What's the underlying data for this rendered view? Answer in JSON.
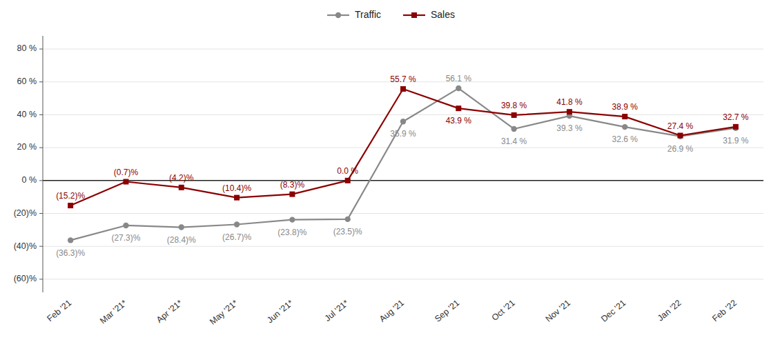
{
  "chart_data": {
    "type": "line",
    "categories": [
      "Feb '21",
      "Mar '21*",
      "Apr '21*",
      "May '21*",
      "Jun '21*",
      "Jul '21*",
      "Aug '21",
      "Sep '21",
      "Oct '21",
      "Nov '21",
      "Dec '21",
      "Jan '22",
      "Feb '22"
    ],
    "series": [
      {
        "name": "Traffic",
        "color": "#888888",
        "marker": "circle",
        "line_style": "solid",
        "values": [
          -36.3,
          -27.3,
          -28.4,
          -26.7,
          -23.8,
          -23.5,
          35.9,
          56.1,
          31.4,
          39.3,
          32.6,
          26.9,
          31.9
        ],
        "value_labels": [
          "(36.3)%",
          "(27.3)%",
          "(28.4)%",
          "(26.7)%",
          "(23.8)%",
          "(23.5)%",
          "35.9 %",
          "56.1 %",
          "31.4 %",
          "39.3 %",
          "32.6 %",
          "26.9 %",
          "31.9 %"
        ]
      },
      {
        "name": "Sales",
        "color": "#8B0000",
        "marker": "square",
        "line_style": "solid",
        "values": [
          -15.2,
          -0.7,
          -4.2,
          -10.4,
          -8.3,
          0.0,
          55.7,
          43.9,
          39.8,
          41.8,
          38.9,
          27.4,
          32.7
        ],
        "value_labels": [
          "(15.2)%",
          "(0.7)%",
          "(4.2)%",
          "(10.4)%",
          "(8.3)%",
          "0.0 %",
          "55.7 %",
          "43.9 %",
          "39.8 %",
          "41.8 %",
          "38.9 %",
          "27.4 %",
          "32.7 %"
        ]
      }
    ],
    "ylim": [
      -68,
      88
    ],
    "yticks": [
      {
        "value": -60,
        "label": "(60)%"
      },
      {
        "value": -40,
        "label": "(40)%"
      },
      {
        "value": -20,
        "label": "(20)%"
      },
      {
        "value": 0,
        "label": "0 %"
      },
      {
        "value": 20,
        "label": "20 %"
      },
      {
        "value": 40,
        "label": "40 %"
      },
      {
        "value": 60,
        "label": "60 %"
      },
      {
        "value": 80,
        "label": "80 %"
      }
    ],
    "grid": true,
    "legend": "top",
    "data_labels": true
  }
}
